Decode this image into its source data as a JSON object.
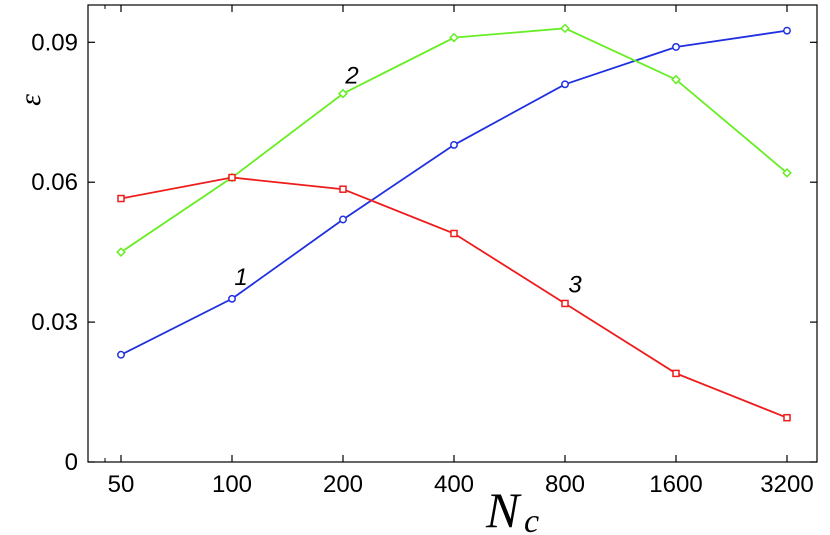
{
  "chart_data": {
    "type": "line",
    "x_scale": "log2",
    "categories": [
      "50",
      "100",
      "200",
      "400",
      "800",
      "1600",
      "3200"
    ],
    "x": [
      50,
      100,
      200,
      400,
      800,
      1600,
      3200
    ],
    "xlabel": "N",
    "xlabel_subscript": "c",
    "ylabel": "ε",
    "ylim": [
      0,
      0.098
    ],
    "yticks": [
      0,
      0.03,
      0.06,
      0.09
    ],
    "ytick_labels": [
      "0",
      "0.03",
      "0.06",
      "0.09"
    ],
    "grid": false,
    "series": [
      {
        "label": "1",
        "color": "#2030e0",
        "marker": "circle",
        "values": [
          0.023,
          0.035,
          0.052,
          0.068,
          0.081,
          0.089,
          0.0925
        ]
      },
      {
        "label": "2",
        "color": "#66ee22",
        "marker": "diamond",
        "values": [
          0.045,
          0.061,
          0.079,
          0.091,
          0.093,
          0.082,
          0.062
        ]
      },
      {
        "label": "3",
        "color": "#ee1c1c",
        "marker": "square",
        "values": [
          0.0565,
          0.061,
          0.0585,
          0.049,
          0.034,
          0.019,
          0.0095
        ]
      }
    ]
  }
}
